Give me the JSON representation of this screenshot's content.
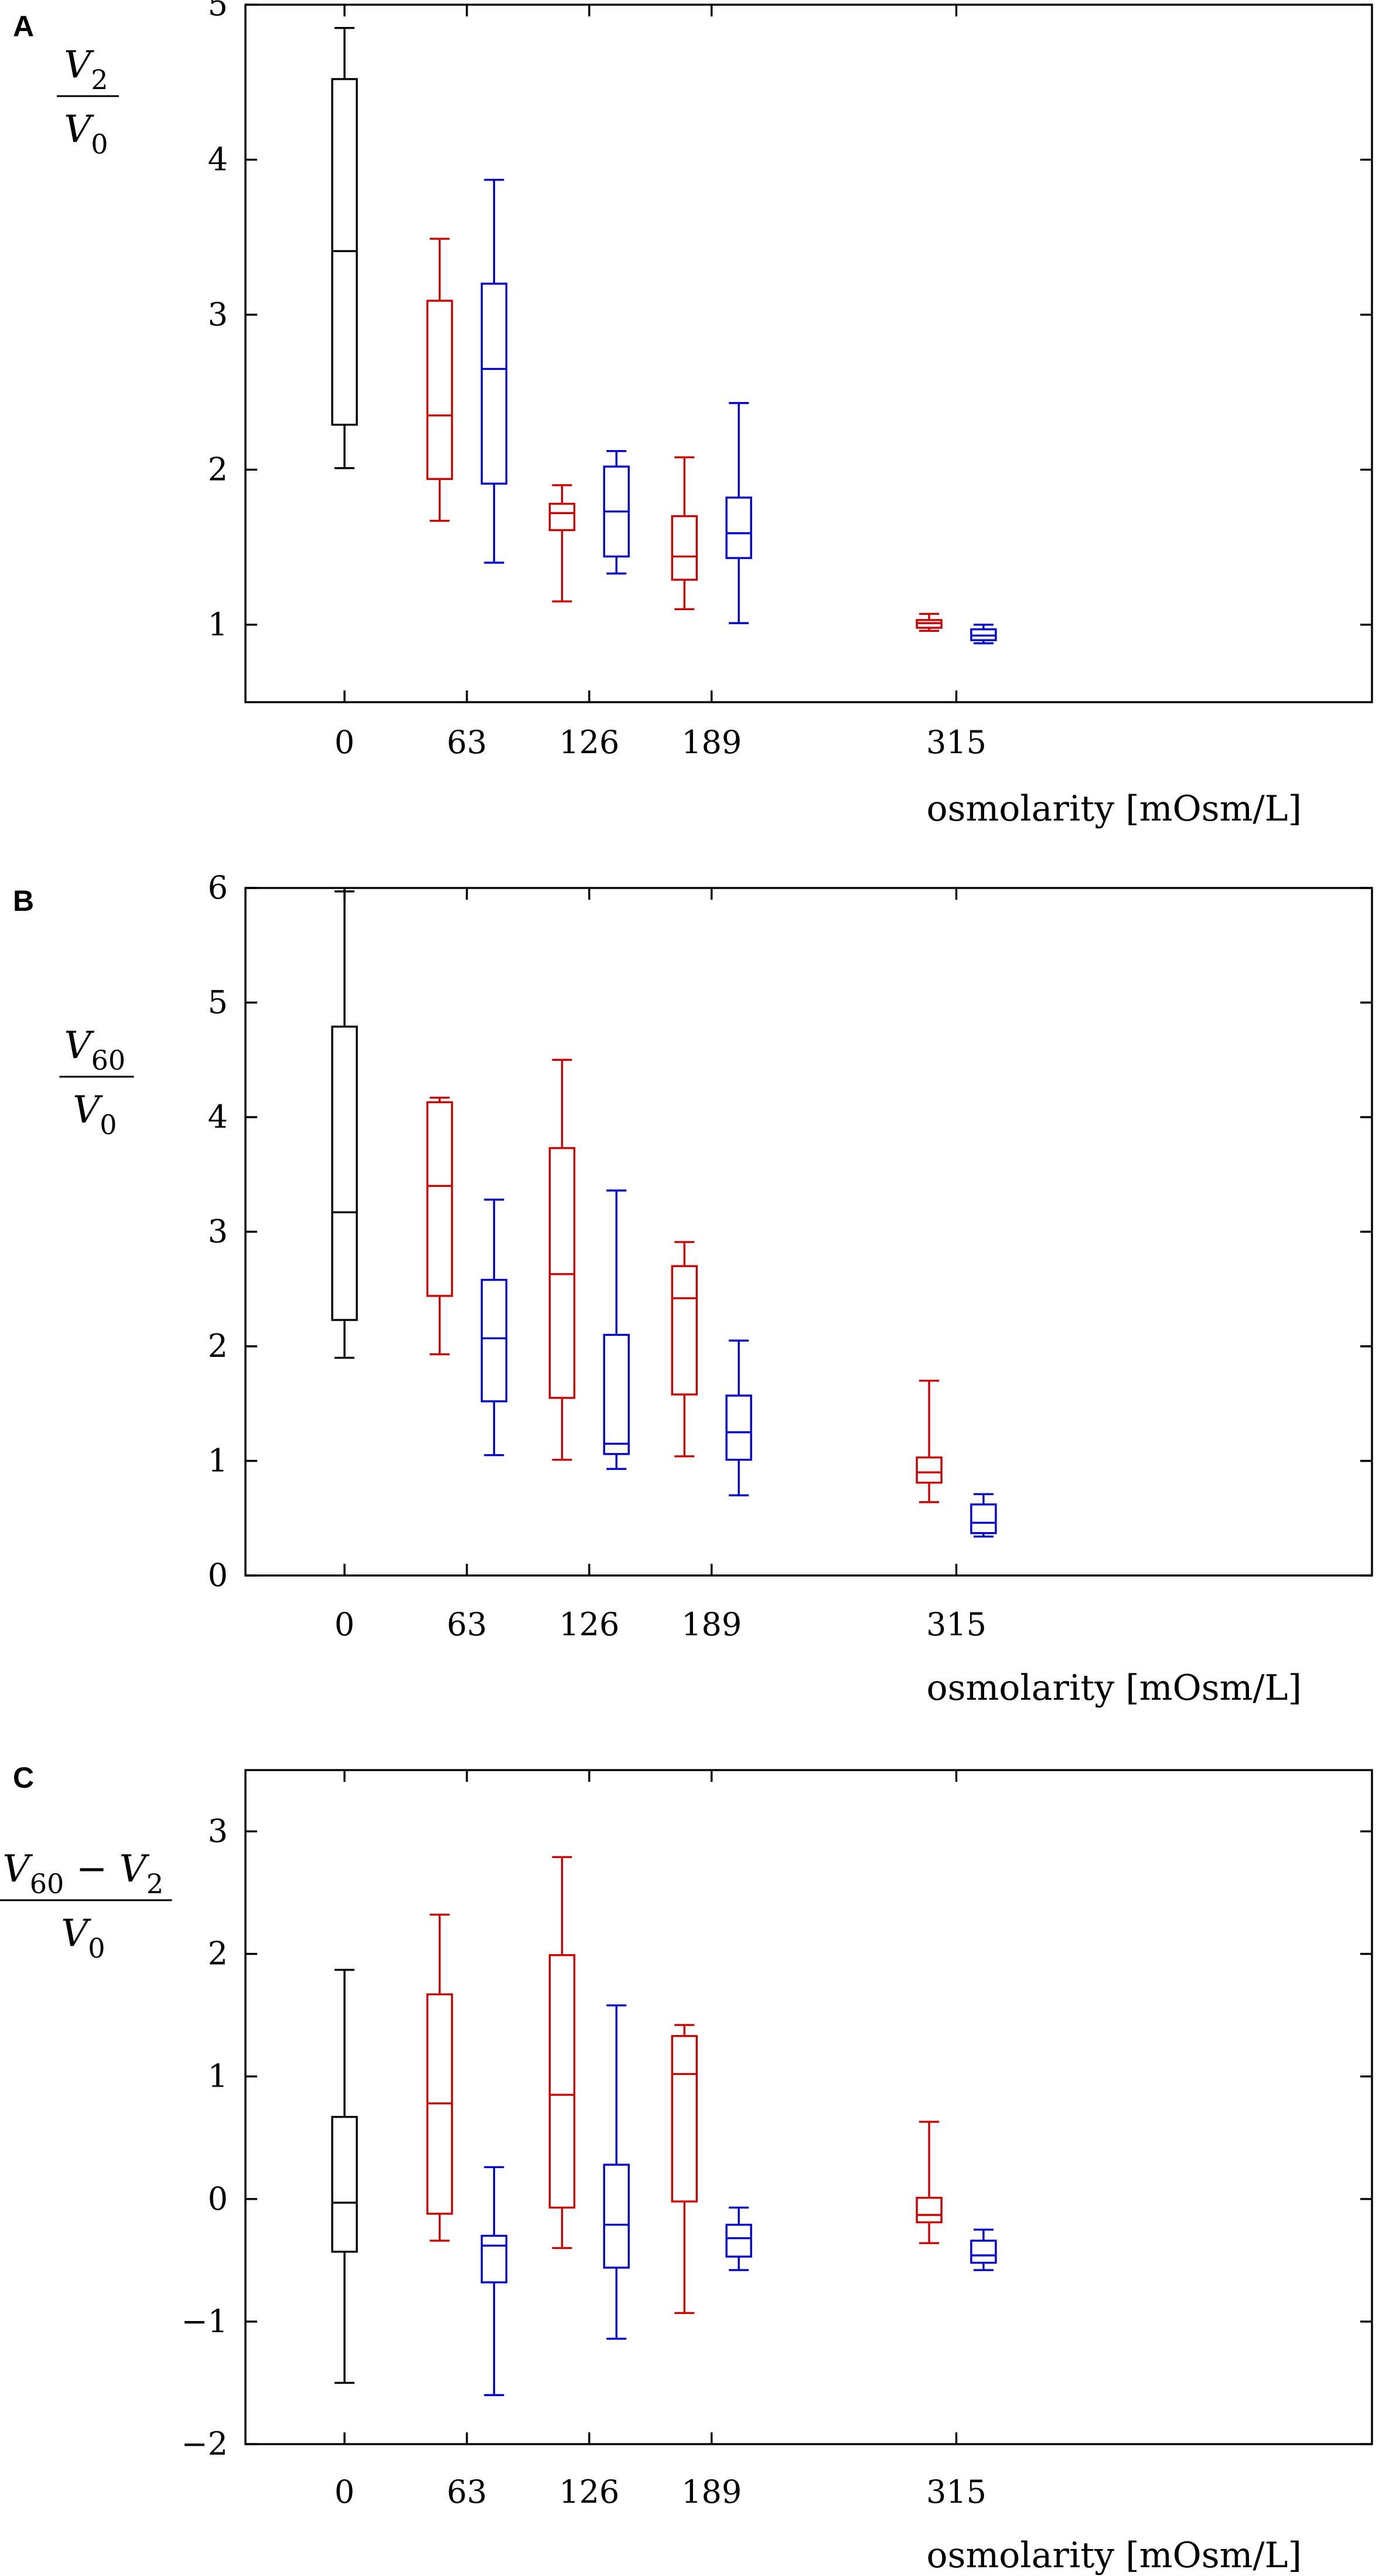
{
  "chart_data": [
    {
      "type": "boxplot",
      "panel": "A",
      "ylabel": {
        "numerator": [
          [
            "V",
            "2"
          ]
        ],
        "denominator": [
          [
            "V",
            "0"
          ]
        ]
      },
      "xlabel": "osmolarity [mOsm/L]",
      "x_ticks": [
        0,
        63,
        126,
        189,
        315
      ],
      "x_tick_labels": [
        "0",
        "63",
        "126",
        "189",
        "315"
      ],
      "y_ticks": [
        1,
        2,
        3,
        4,
        5
      ],
      "y_tick_labels": [
        "1",
        "2",
        "3",
        "4",
        "5"
      ],
      "ylim": [
        0.5,
        5
      ],
      "xlim": [
        -51,
        529
      ],
      "series_colors": {
        "black": "#000000",
        "red": "#cc0000",
        "blue": "#0000cc"
      },
      "boxes": [
        {
          "x": 0,
          "offset": 0,
          "color": "black",
          "min": 2.01,
          "q1": 2.29,
          "median": 3.41,
          "q3": 4.52,
          "max": 4.85
        },
        {
          "x": 63,
          "offset": -14,
          "color": "red",
          "min": 1.67,
          "q1": 1.94,
          "median": 2.35,
          "q3": 3.09,
          "max": 3.49
        },
        {
          "x": 63,
          "offset": 14,
          "color": "blue",
          "min": 1.4,
          "q1": 1.91,
          "median": 2.65,
          "q3": 3.2,
          "max": 3.87
        },
        {
          "x": 126,
          "offset": -14,
          "color": "red",
          "min": 1.15,
          "q1": 1.61,
          "median": 1.72,
          "q3": 1.78,
          "max": 1.9
        },
        {
          "x": 126,
          "offset": 14,
          "color": "blue",
          "min": 1.33,
          "q1": 1.44,
          "median": 1.73,
          "q3": 2.02,
          "max": 2.12
        },
        {
          "x": 189,
          "offset": -14,
          "color": "red",
          "min": 1.1,
          "q1": 1.29,
          "median": 1.44,
          "q3": 1.7,
          "max": 2.08
        },
        {
          "x": 189,
          "offset": 14,
          "color": "blue",
          "min": 1.01,
          "q1": 1.43,
          "median": 1.59,
          "q3": 1.82,
          "max": 2.43
        },
        {
          "x": 315,
          "offset": -14,
          "color": "red",
          "min": 0.96,
          "q1": 0.98,
          "median": 1.01,
          "q3": 1.03,
          "max": 1.07
        },
        {
          "x": 315,
          "offset": 14,
          "color": "blue",
          "min": 0.88,
          "q1": 0.9,
          "median": 0.93,
          "q3": 0.97,
          "max": 1.0
        }
      ]
    },
    {
      "type": "boxplot",
      "panel": "B",
      "ylabel": {
        "numerator": [
          [
            "V",
            "60"
          ]
        ],
        "denominator": [
          [
            "V",
            "0"
          ]
        ]
      },
      "xlabel": "osmolarity [mOsm/L]",
      "x_ticks": [
        0,
        63,
        126,
        189,
        315
      ],
      "x_tick_labels": [
        "0",
        "63",
        "126",
        "189",
        "315"
      ],
      "y_ticks": [
        0,
        1,
        2,
        3,
        4,
        5,
        6
      ],
      "y_tick_labels": [
        "0",
        "1",
        "2",
        "3",
        "4",
        "5",
        "6"
      ],
      "ylim": [
        0,
        6
      ],
      "xlim": [
        -51,
        529
      ],
      "series_colors": {
        "black": "#000000",
        "red": "#cc0000",
        "blue": "#0000cc"
      },
      "boxes": [
        {
          "x": 0,
          "offset": 0,
          "color": "black",
          "min": 1.9,
          "q1": 2.23,
          "median": 3.17,
          "q3": 4.79,
          "max": 5.97
        },
        {
          "x": 63,
          "offset": -14,
          "color": "red",
          "min": 1.93,
          "q1": 2.44,
          "median": 3.4,
          "q3": 4.13,
          "max": 4.17
        },
        {
          "x": 63,
          "offset": 14,
          "color": "blue",
          "min": 1.05,
          "q1": 1.52,
          "median": 2.07,
          "q3": 2.58,
          "max": 3.28
        },
        {
          "x": 126,
          "offset": -14,
          "color": "red",
          "min": 1.01,
          "q1": 1.55,
          "median": 2.63,
          "q3": 3.73,
          "max": 4.5
        },
        {
          "x": 126,
          "offset": 14,
          "color": "blue",
          "min": 0.93,
          "q1": 1.06,
          "median": 1.15,
          "q3": 2.1,
          "max": 3.36
        },
        {
          "x": 189,
          "offset": -14,
          "color": "red",
          "min": 1.04,
          "q1": 1.58,
          "median": 2.42,
          "q3": 2.7,
          "max": 2.91
        },
        {
          "x": 189,
          "offset": 14,
          "color": "blue",
          "min": 0.7,
          "q1": 1.01,
          "median": 1.25,
          "q3": 1.57,
          "max": 2.05
        },
        {
          "x": 315,
          "offset": -14,
          "color": "red",
          "min": 0.64,
          "q1": 0.81,
          "median": 0.9,
          "q3": 1.03,
          "max": 1.7
        },
        {
          "x": 315,
          "offset": 14,
          "color": "blue",
          "min": 0.34,
          "q1": 0.37,
          "median": 0.46,
          "q3": 0.62,
          "max": 0.71
        }
      ]
    },
    {
      "type": "boxplot",
      "panel": "C",
      "ylabel": {
        "numerator": [
          [
            "V",
            "60"
          ],
          [
            "−",
            ""
          ],
          [
            "V",
            "2"
          ]
        ],
        "denominator": [
          [
            "V",
            "0"
          ]
        ]
      },
      "xlabel": "osmolarity [mOsm/L]",
      "x_ticks": [
        0,
        63,
        126,
        189,
        315
      ],
      "x_tick_labels": [
        "0",
        "63",
        "126",
        "189",
        "315"
      ],
      "y_ticks": [
        -2,
        -1,
        0,
        1,
        2,
        3
      ],
      "y_tick_labels": [
        "−2",
        "−1",
        "0",
        "1",
        "2",
        "3"
      ],
      "ylim": [
        -2,
        3.5
      ],
      "xlim": [
        -51,
        529
      ],
      "series_colors": {
        "black": "#000000",
        "red": "#cc0000",
        "blue": "#0000cc"
      },
      "boxes": [
        {
          "x": 0,
          "offset": 0,
          "color": "black",
          "min": -1.5,
          "q1": -0.43,
          "median": -0.03,
          "q3": 0.67,
          "max": 1.87
        },
        {
          "x": 63,
          "offset": -14,
          "color": "red",
          "min": -0.34,
          "q1": -0.12,
          "median": 0.78,
          "q3": 1.67,
          "max": 2.32
        },
        {
          "x": 63,
          "offset": 14,
          "color": "blue",
          "min": -1.6,
          "q1": -0.68,
          "median": -0.38,
          "q3": -0.3,
          "max": 0.26
        },
        {
          "x": 126,
          "offset": -14,
          "color": "red",
          "min": -0.4,
          "q1": -0.07,
          "median": 0.85,
          "q3": 1.99,
          "max": 2.79
        },
        {
          "x": 126,
          "offset": 14,
          "color": "blue",
          "min": -1.14,
          "q1": -0.56,
          "median": -0.21,
          "q3": 0.28,
          "max": 1.58
        },
        {
          "x": 189,
          "offset": -14,
          "color": "red",
          "min": -0.93,
          "q1": -0.02,
          "median": 1.02,
          "q3": 1.33,
          "max": 1.42
        },
        {
          "x": 189,
          "offset": 14,
          "color": "blue",
          "min": -0.58,
          "q1": -0.47,
          "median": -0.32,
          "q3": -0.21,
          "max": -0.07
        },
        {
          "x": 315,
          "offset": -14,
          "color": "red",
          "min": -0.36,
          "q1": -0.19,
          "median": -0.13,
          "q3": 0.01,
          "max": 0.63
        },
        {
          "x": 315,
          "offset": 14,
          "color": "blue",
          "min": -0.58,
          "q1": -0.52,
          "median": -0.46,
          "q3": -0.34,
          "max": -0.25
        }
      ]
    }
  ]
}
